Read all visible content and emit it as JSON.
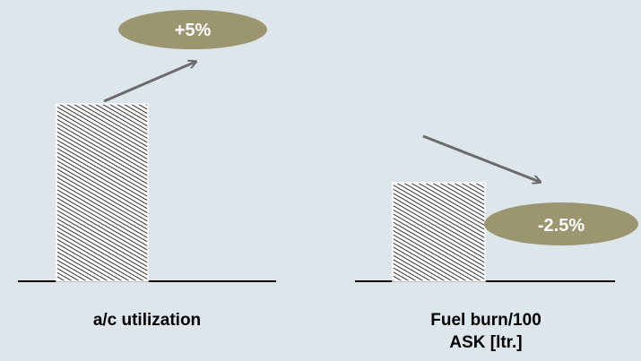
{
  "chart_data": [
    {
      "type": "bar",
      "categories": [
        "a/c utilization"
      ],
      "annotation": "+5%",
      "trend": "up"
    },
    {
      "type": "bar",
      "categories": [
        "Fuel burn/100 ASK [ltr.]"
      ],
      "annotation": "-2.5%",
      "trend": "down"
    }
  ],
  "colors": {
    "background": "#dde7eb",
    "badge": "#9c9670",
    "arrow": "#6b6b6b",
    "axis": "#000000"
  },
  "labels": {
    "left_category": "a/c utilization",
    "right_category_line1": "Fuel burn/100",
    "right_category_line2": "ASK [ltr.]",
    "left_badge": "+5%",
    "right_badge": "-2.5%"
  }
}
